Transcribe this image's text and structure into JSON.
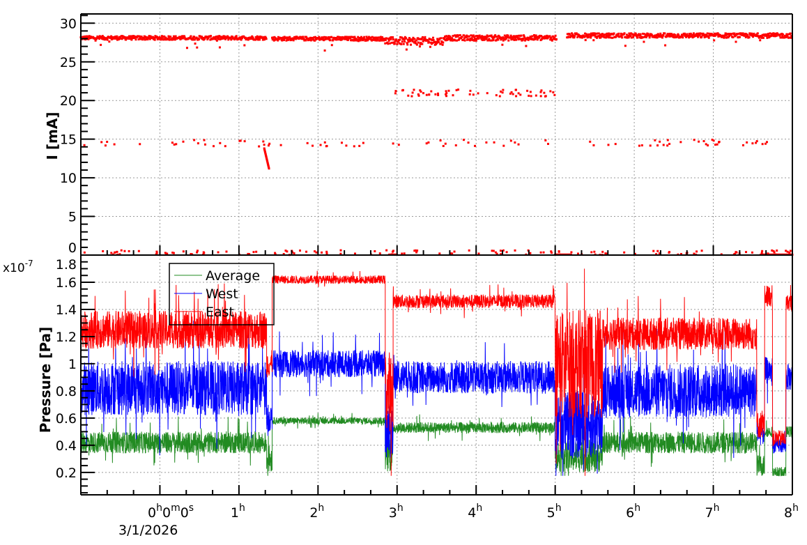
{
  "chart_data": [
    {
      "type": "scatter",
      "panel": "top",
      "ylabel": "I [mA]",
      "xlim_hours": [
        -1,
        8
      ],
      "ylim": [
        0,
        31.2
      ],
      "yticks": [
        "0",
        "5",
        "10",
        "15",
        "20",
        "25",
        "30"
      ],
      "grid": true,
      "color": "#ff0000",
      "main_band_segments": [
        {
          "start_h": -1.0,
          "end_h": 1.35,
          "mean": 28.1,
          "noise": 0.25
        },
        {
          "start_h": 1.42,
          "end_h": 2.85,
          "mean": 28.0,
          "noise": 0.25
        },
        {
          "start_h": 2.85,
          "end_h": 3.6,
          "mean": 27.7,
          "noise": 0.5
        },
        {
          "start_h": 3.6,
          "end_h": 5.02,
          "mean": 28.1,
          "noise": 0.35
        },
        {
          "start_h": 5.15,
          "end_h": 8.0,
          "mean": 28.4,
          "noise": 0.3
        }
      ],
      "secondary_levels": [
        {
          "start_h": 2.95,
          "end_h": 5.0,
          "value": 20.8,
          "count": 60
        },
        {
          "start_h": -1.0,
          "end_h": 8.0,
          "value": 14.3,
          "count": 90
        },
        {
          "start_h": -1.0,
          "end_h": 8.0,
          "value": 0.2,
          "count": 140
        }
      ],
      "decay_event": {
        "start_h": 1.32,
        "end_h": 1.38,
        "from": 13.8,
        "to": 11.2
      },
      "zero_intervals": [
        [
          5.0,
          5.2
        ],
        [
          7.6,
          8.0
        ],
        [
          2.9,
          3.0
        ]
      ]
    },
    {
      "type": "line",
      "panel": "bottom",
      "ylabel": "Pressure [Pa]",
      "y_multiplier": "x10",
      "y_multiplier_exp": "-7",
      "xlim_hours": [
        -1,
        8
      ],
      "ylim": [
        0.035,
        1.8
      ],
      "yticks": [
        "0.2",
        "0.4",
        "0.6",
        "0.8",
        "1",
        "1.2",
        "1.4",
        "1.6",
        "1.8"
      ],
      "xticks": [
        "0",
        "1",
        "2",
        "3",
        "4",
        "5",
        "6",
        "7",
        "8"
      ],
      "x_first_label_parts": [
        "0",
        "h",
        "0",
        "m",
        "0",
        "s"
      ],
      "x_unit": "h",
      "x_date": "3/1/2026",
      "grid": true,
      "legend": {
        "placement": "top-left",
        "entries": [
          "Average",
          "West",
          "East"
        ]
      },
      "series": [
        {
          "name": "Average",
          "color": "#228b22",
          "segments": [
            {
              "start_h": -1.0,
              "end_h": 1.35,
              "mean": 0.42,
              "noise": 0.08
            },
            {
              "start_h": 1.35,
              "end_h": 1.42,
              "mean": 0.3,
              "noise": 0.1
            },
            {
              "start_h": 1.42,
              "end_h": 2.85,
              "mean": 0.58,
              "noise": 0.025
            },
            {
              "start_h": 2.85,
              "end_h": 2.95,
              "mean": 0.35,
              "noise": 0.15
            },
            {
              "start_h": 2.95,
              "end_h": 5.0,
              "mean": 0.53,
              "noise": 0.04
            },
            {
              "start_h": 5.0,
              "end_h": 5.6,
              "mean": 0.32,
              "noise": 0.12
            },
            {
              "start_h": 5.6,
              "end_h": 7.55,
              "mean": 0.42,
              "noise": 0.08
            },
            {
              "start_h": 7.55,
              "end_h": 7.65,
              "mean": 0.25,
              "noise": 0.08
            },
            {
              "start_h": 7.65,
              "end_h": 7.75,
              "mean": 0.5,
              "noise": 0.04
            },
            {
              "start_h": 7.75,
              "end_h": 7.92,
              "mean": 0.2,
              "noise": 0.04
            },
            {
              "start_h": 7.92,
              "end_h": 8.0,
              "mean": 0.5,
              "noise": 0.04
            }
          ]
        },
        {
          "name": "West",
          "color": "#0000ff",
          "segments": [
            {
              "start_h": -1.0,
              "end_h": 1.35,
              "mean": 0.82,
              "noise": 0.2
            },
            {
              "start_h": 1.35,
              "end_h": 1.42,
              "mean": 0.6,
              "noise": 0.1
            },
            {
              "start_h": 1.42,
              "end_h": 2.85,
              "mean": 1.0,
              "noise": 0.1
            },
            {
              "start_h": 2.85,
              "end_h": 2.95,
              "mean": 0.5,
              "noise": 0.2
            },
            {
              "start_h": 2.95,
              "end_h": 5.0,
              "mean": 0.9,
              "noise": 0.12
            },
            {
              "start_h": 5.0,
              "end_h": 5.6,
              "mean": 0.55,
              "noise": 0.25
            },
            {
              "start_h": 5.6,
              "end_h": 7.55,
              "mean": 0.8,
              "noise": 0.2
            },
            {
              "start_h": 7.55,
              "end_h": 7.65,
              "mean": 0.5,
              "noise": 0.1
            },
            {
              "start_h": 7.65,
              "end_h": 7.75,
              "mean": 0.95,
              "noise": 0.1
            },
            {
              "start_h": 7.75,
              "end_h": 7.92,
              "mean": 0.4,
              "noise": 0.06
            },
            {
              "start_h": 7.92,
              "end_h": 8.0,
              "mean": 0.9,
              "noise": 0.1
            }
          ]
        },
        {
          "name": "East",
          "color": "#ff0000",
          "segments": [
            {
              "start_h": -1.0,
              "end_h": 1.35,
              "mean": 1.25,
              "noise": 0.14
            },
            {
              "start_h": 1.35,
              "end_h": 1.42,
              "mean": 1.0,
              "noise": 0.1
            },
            {
              "start_h": 1.42,
              "end_h": 2.85,
              "mean": 1.62,
              "noise": 0.03
            },
            {
              "start_h": 2.85,
              "end_h": 2.95,
              "mean": 0.8,
              "noise": 0.3
            },
            {
              "start_h": 2.95,
              "end_h": 5.0,
              "mean": 1.46,
              "noise": 0.05
            },
            {
              "start_h": 5.0,
              "end_h": 5.6,
              "mean": 1.0,
              "noise": 0.4
            },
            {
              "start_h": 5.6,
              "end_h": 7.55,
              "mean": 1.22,
              "noise": 0.12
            },
            {
              "start_h": 7.55,
              "end_h": 7.65,
              "mean": 0.55,
              "noise": 0.1
            },
            {
              "start_h": 7.65,
              "end_h": 7.75,
              "mean": 1.5,
              "noise": 0.08
            },
            {
              "start_h": 7.75,
              "end_h": 7.92,
              "mean": 0.45,
              "noise": 0.06
            },
            {
              "start_h": 7.92,
              "end_h": 8.0,
              "mean": 1.45,
              "noise": 0.06
            }
          ]
        }
      ]
    }
  ]
}
